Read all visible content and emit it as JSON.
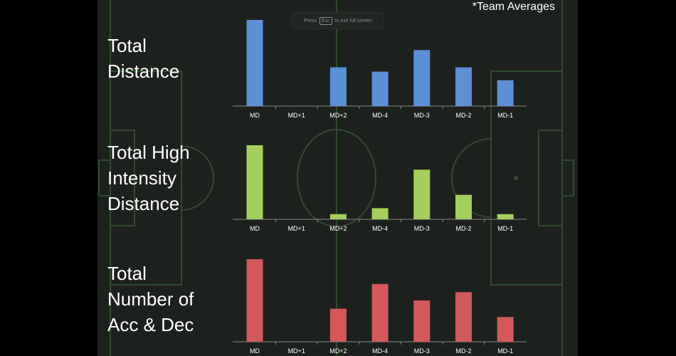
{
  "note": "*Team Averages",
  "fullscreen_toast": {
    "before": "Press",
    "key": "Esc",
    "after": "to exit full screen"
  },
  "chart_data": [
    {
      "type": "bar",
      "title": "Total\nDistance",
      "categories": [
        "MD",
        "MD+1",
        "MD+2",
        "MD-4",
        "MD-3",
        "MD-2",
        "MD-1"
      ],
      "values": [
        100,
        0,
        45,
        40,
        65,
        45,
        30
      ],
      "ylim": [
        0,
        100
      ],
      "color": "#5b8fd6"
    },
    {
      "type": "bar",
      "title": "Total High\nIntensity\nDistance",
      "categories": [
        "MD",
        "MD+1",
        "MD+2",
        "MD-4",
        "MD-3",
        "MD-2",
        "MD-1"
      ],
      "values": [
        100,
        0,
        7,
        15,
        67,
        33,
        7
      ],
      "ylim": [
        0,
        100
      ],
      "color": "#a4cf5c"
    },
    {
      "type": "bar",
      "title": "Total\nNumber of\nAcc & Dec",
      "categories": [
        "MD",
        "MD+1",
        "MD+2",
        "MD-4",
        "MD-3",
        "MD-2",
        "MD-1"
      ],
      "values": [
        100,
        0,
        40,
        70,
        50,
        60,
        30
      ],
      "ylim": [
        0,
        100
      ],
      "color": "#d2585a"
    }
  ]
}
